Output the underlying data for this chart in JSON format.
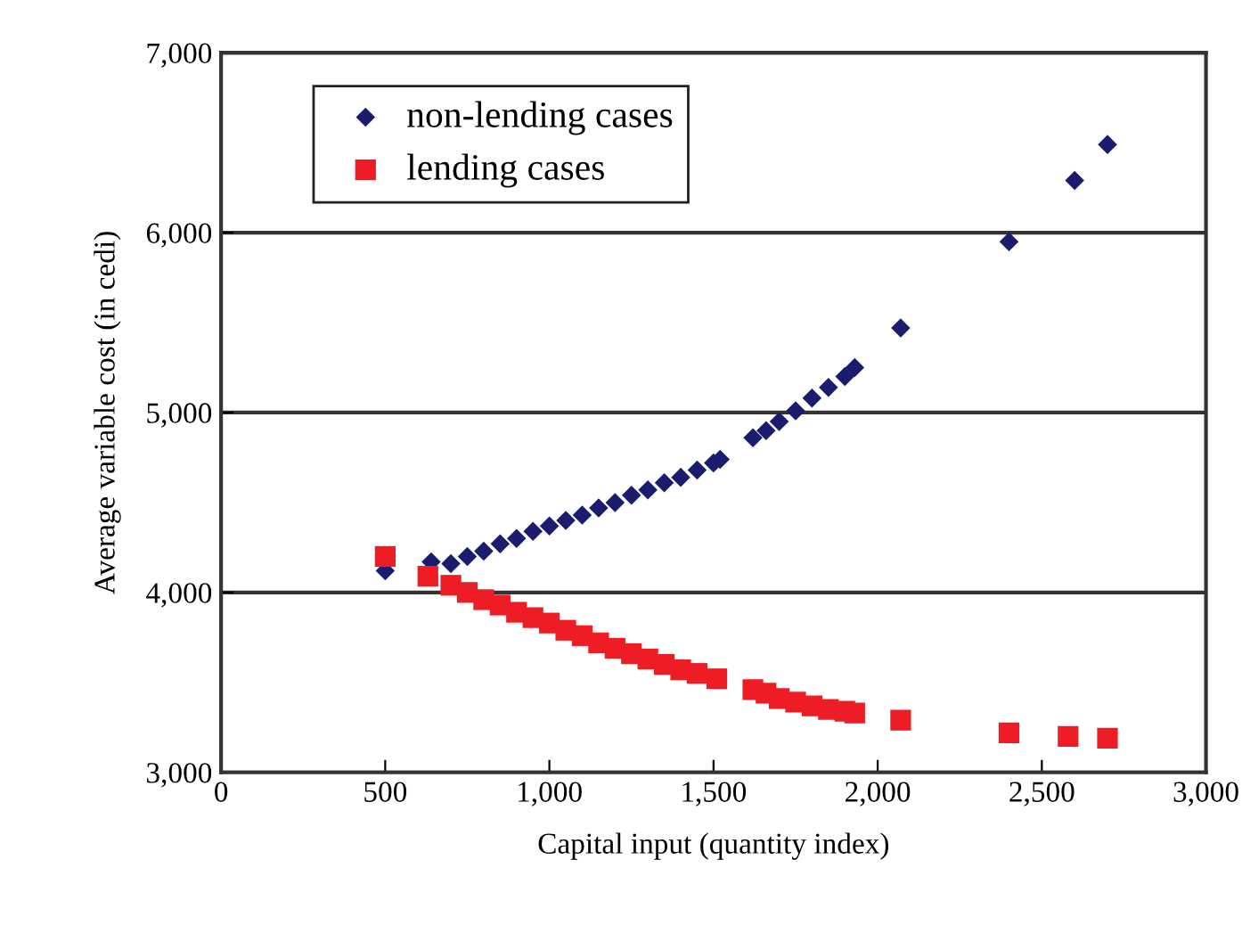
{
  "chart_data": {
    "type": "scatter",
    "xlabel": "Capital input (quantity index)",
    "ylabel": "Average variable cost (in cedi)",
    "xlim": [
      0,
      3000
    ],
    "xticks": [
      {
        "value": 0,
        "label": "0"
      },
      {
        "value": 500,
        "label": "500"
      },
      {
        "value": 1000,
        "label": "1,000"
      },
      {
        "value": 1500,
        "label": "1,500"
      },
      {
        "value": 2000,
        "label": "2,000"
      },
      {
        "value": 2500,
        "label": "2,500"
      },
      {
        "value": 3000,
        "label": "3,000"
      }
    ],
    "ylim": [
      3000,
      7000
    ],
    "yticks": [
      {
        "value": 3000,
        "label": "3,000"
      },
      {
        "value": 4000,
        "label": "4,000"
      },
      {
        "value": 5000,
        "label": "5,000"
      },
      {
        "value": 6000,
        "label": "6,000"
      },
      {
        "value": 7000,
        "label": "7,000"
      }
    ],
    "grid": "y",
    "legend": "top left",
    "series": [
      {
        "name": "non-lending cases",
        "color": "#1c1c6e",
        "marker": "diamond",
        "x": [
          500,
          640,
          700,
          750,
          800,
          850,
          900,
          950,
          1000,
          1050,
          1100,
          1150,
          1200,
          1250,
          1300,
          1350,
          1400,
          1450,
          1500,
          1520,
          1620,
          1660,
          1700,
          1750,
          1800,
          1850,
          1900,
          1930,
          2070,
          2400,
          2600,
          2700
        ],
        "values": [
          4120,
          4170,
          4160,
          4200,
          4230,
          4270,
          4300,
          4340,
          4370,
          4400,
          4430,
          4470,
          4500,
          4540,
          4570,
          4610,
          4640,
          4680,
          4720,
          4740,
          4860,
          4900,
          4950,
          5010,
          5080,
          5140,
          5200,
          5250,
          5470,
          5950,
          6290,
          6490
        ]
      },
      {
        "name": "lending cases",
        "color": "#ee1c25",
        "marker": "square",
        "x": [
          500,
          630,
          700,
          750,
          800,
          850,
          900,
          950,
          1000,
          1050,
          1100,
          1150,
          1200,
          1250,
          1300,
          1350,
          1400,
          1450,
          1510,
          1620,
          1660,
          1700,
          1750,
          1800,
          1850,
          1900,
          1930,
          2070,
          2400,
          2580,
          2700
        ],
        "values": [
          4200,
          4090,
          4040,
          4000,
          3960,
          3930,
          3890,
          3860,
          3830,
          3790,
          3760,
          3720,
          3690,
          3660,
          3630,
          3600,
          3570,
          3550,
          3520,
          3460,
          3440,
          3410,
          3390,
          3370,
          3350,
          3340,
          3330,
          3290,
          3220,
          3200,
          3190
        ]
      }
    ]
  }
}
